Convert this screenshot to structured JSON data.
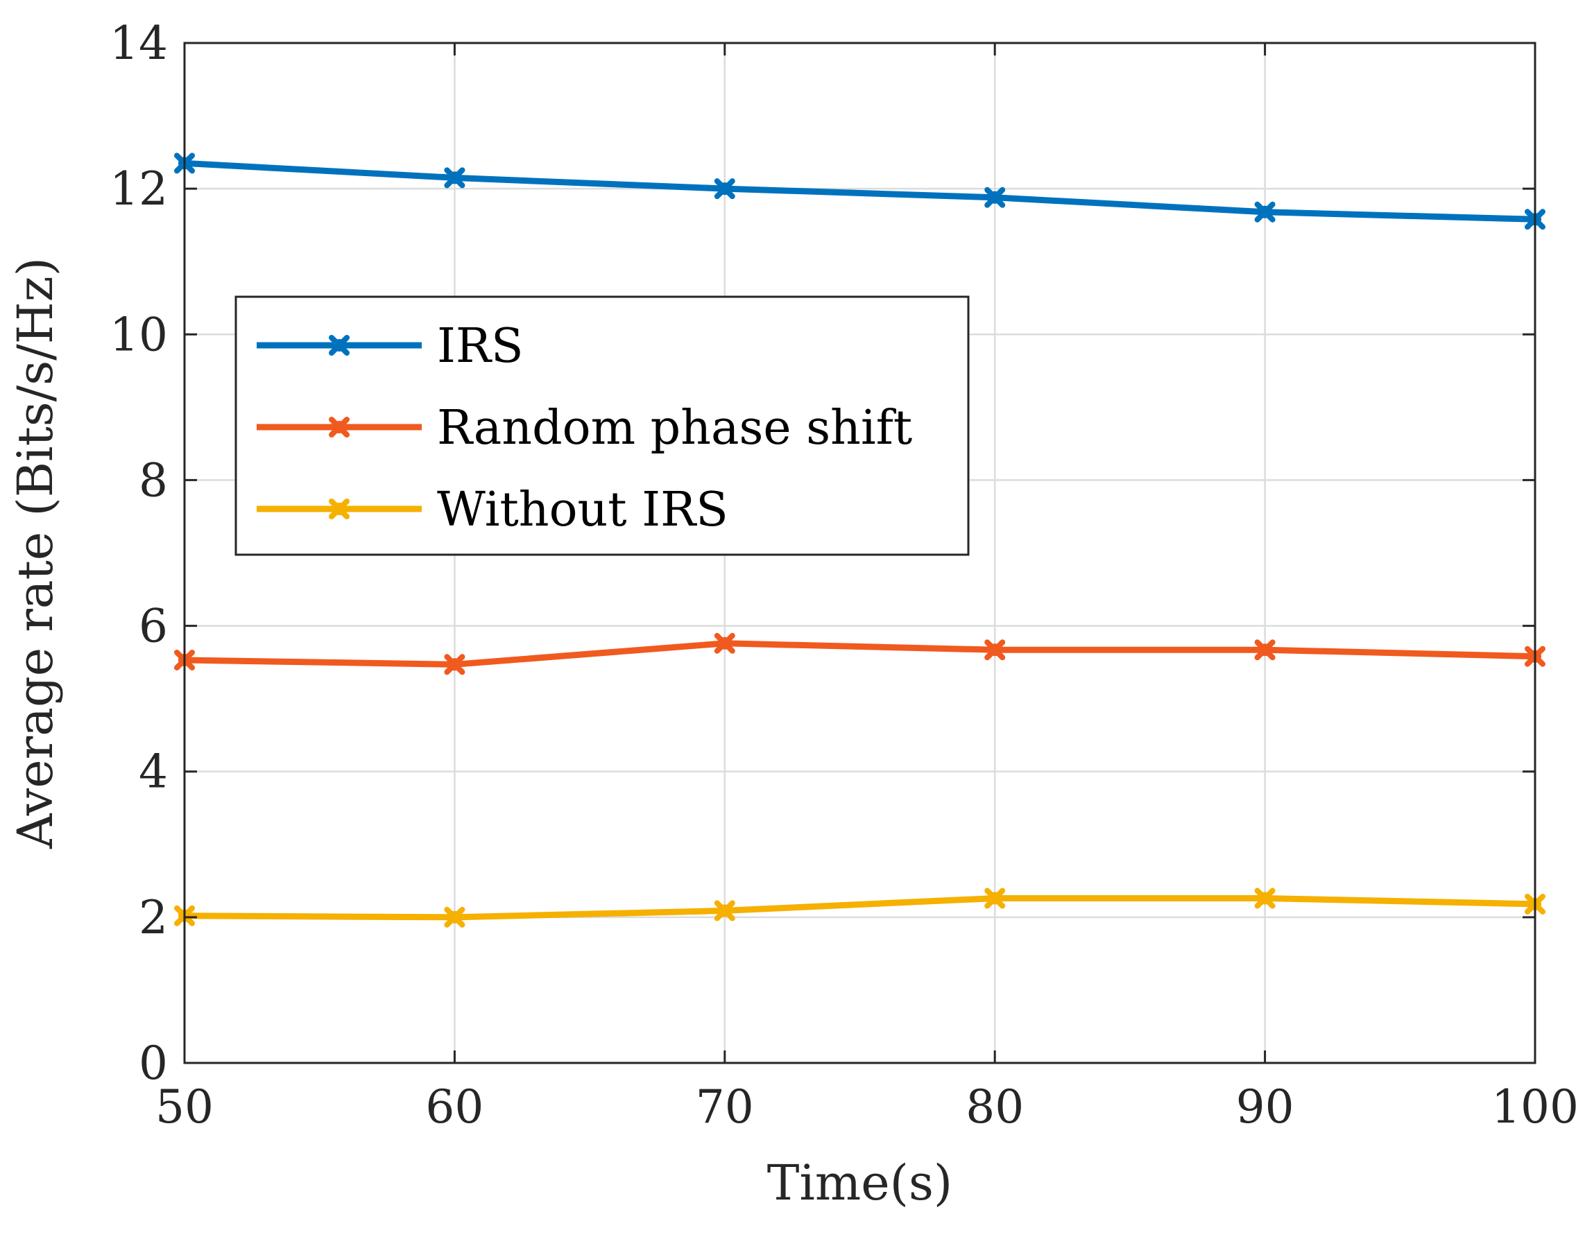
{
  "chart_data": {
    "type": "line",
    "title": "",
    "xlabel": "Time(s)",
    "ylabel": "Average rate (Bits/s/Hz)",
    "x": [
      50,
      60,
      70,
      80,
      90,
      100
    ],
    "xlim": [
      50,
      100
    ],
    "ylim": [
      0,
      14
    ],
    "xticks": [
      50,
      60,
      70,
      80,
      90,
      100
    ],
    "yticks": [
      0,
      2,
      4,
      6,
      8,
      10,
      12,
      14
    ],
    "grid": true,
    "legend_position": "upper-left",
    "series": [
      {
        "name": "IRS",
        "color": "#0072BD",
        "marker": "x",
        "values": [
          12.35,
          12.15,
          12.0,
          11.88,
          11.68,
          11.58
        ]
      },
      {
        "name": "Random phase shift",
        "color": "#F05A1E",
        "marker": "x",
        "values": [
          5.53,
          5.47,
          5.76,
          5.67,
          5.67,
          5.58
        ]
      },
      {
        "name": "Without IRS",
        "color": "#F5B000",
        "marker": "x",
        "values": [
          2.02,
          2.0,
          2.09,
          2.26,
          2.26,
          2.18
        ]
      }
    ]
  }
}
